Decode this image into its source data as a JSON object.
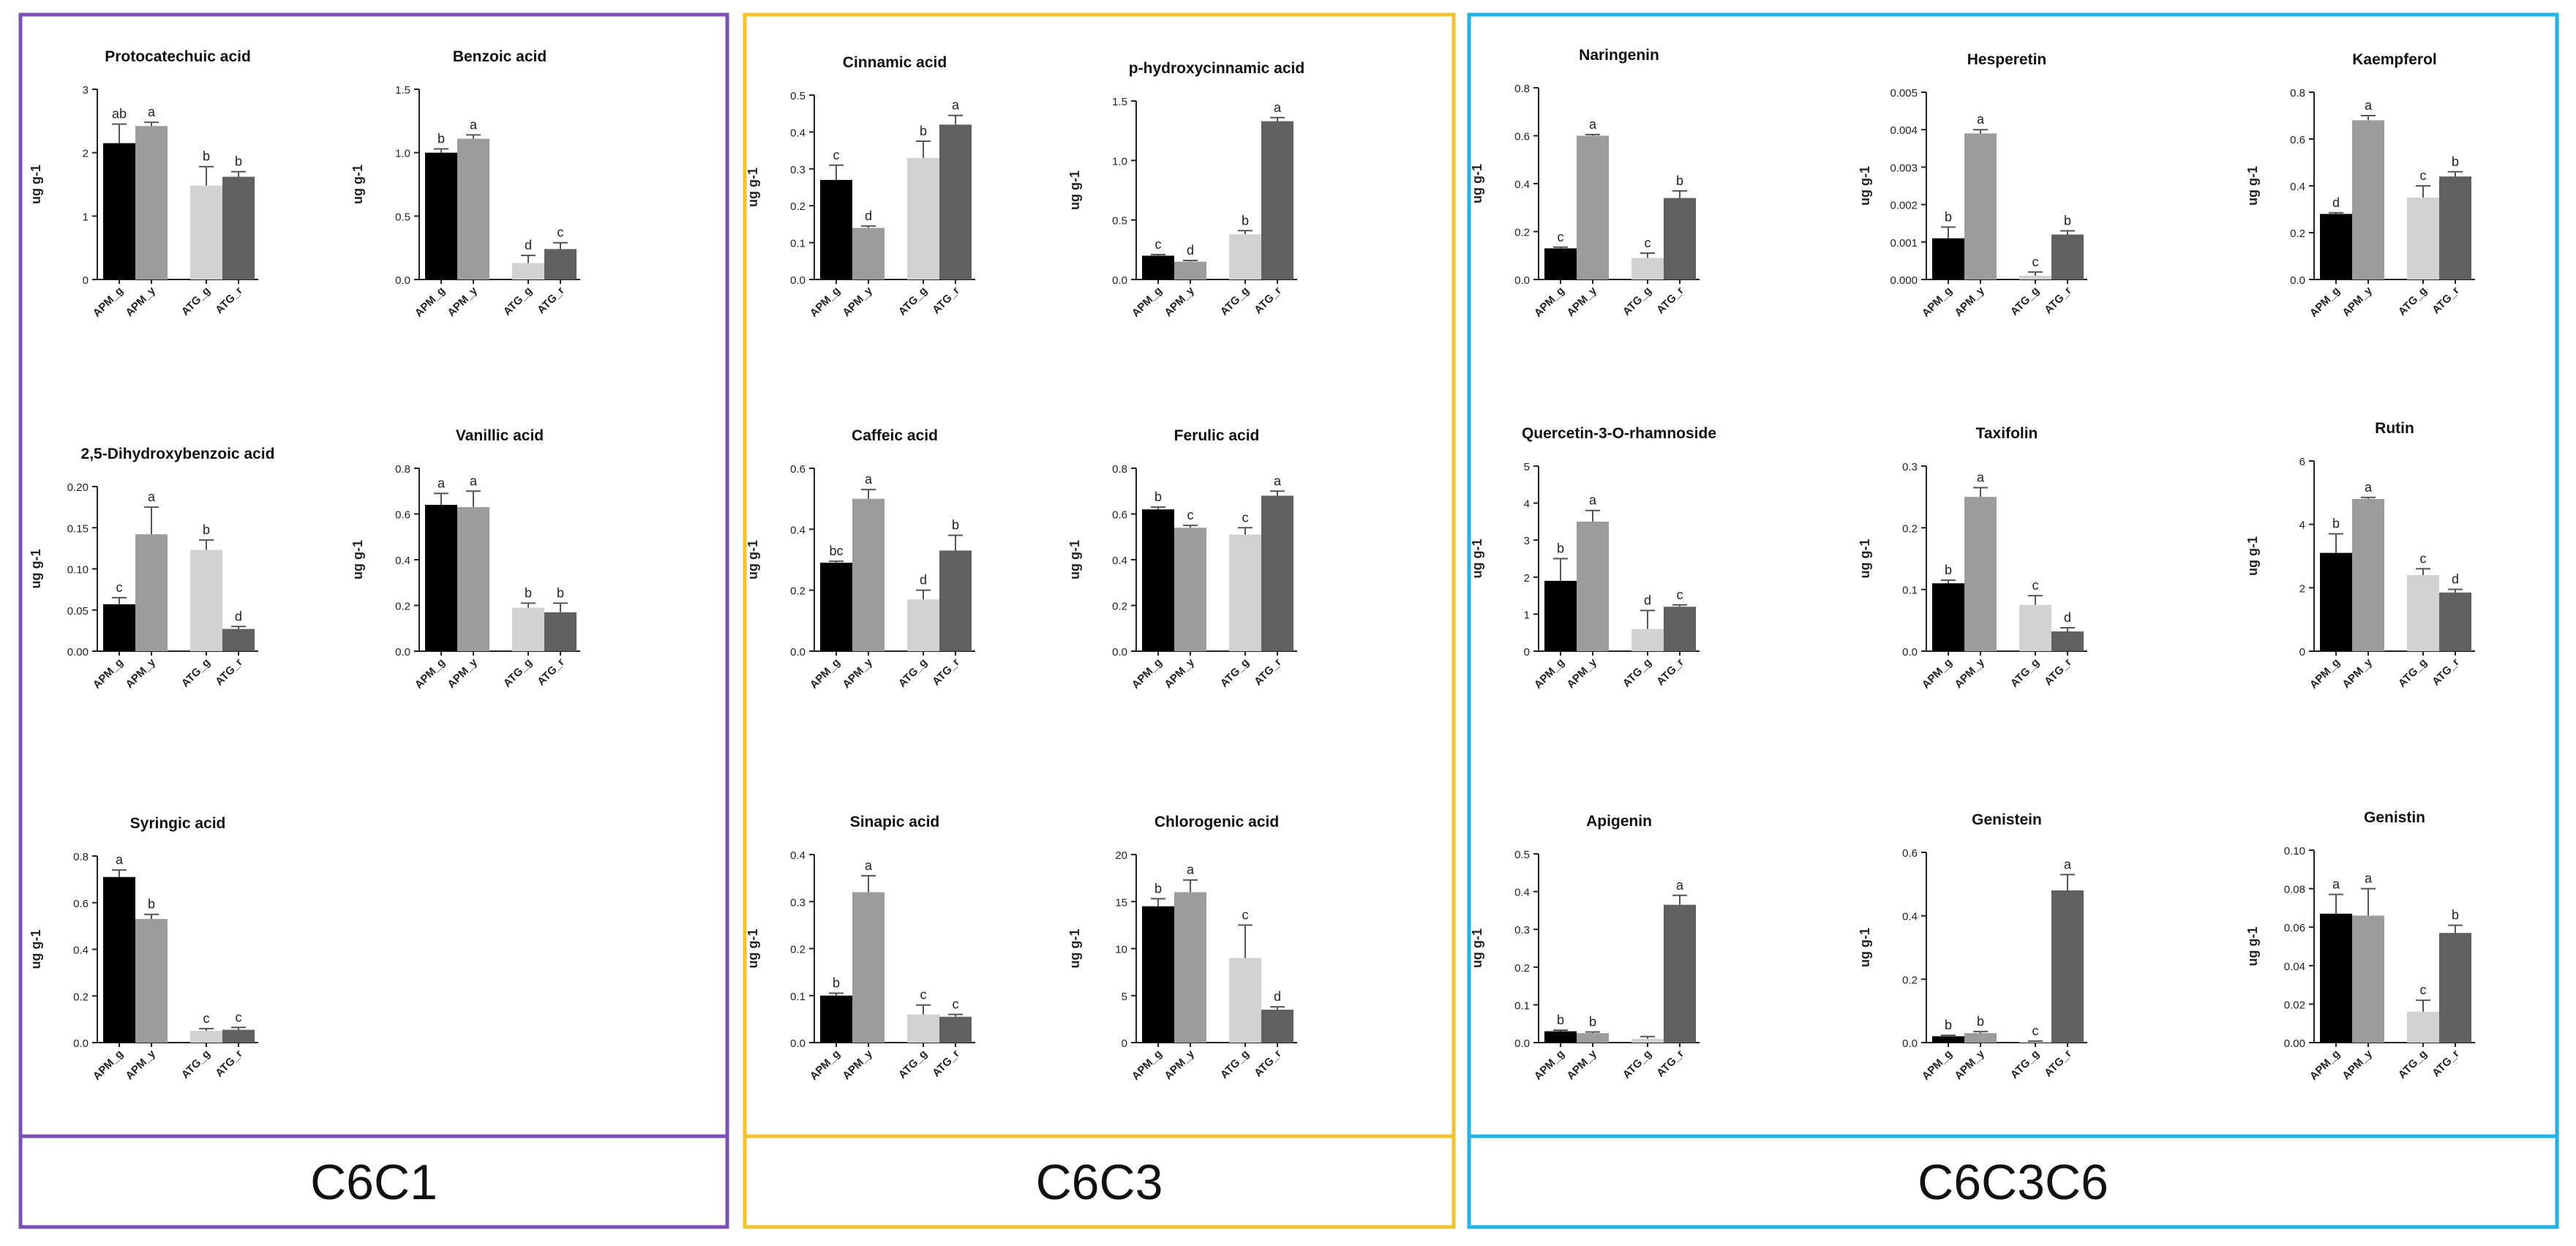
{
  "y_unit_label": "ug g-1",
  "groups": [
    {
      "label": "C6C1",
      "color": "#7B4FB5"
    },
    {
      "label": "C6C3",
      "color": "#F2C230"
    },
    {
      "label": "C6C3C6",
      "color": "#22B3E6"
    }
  ],
  "categories": [
    "APM_g",
    "APM_y",
    "ATG_g",
    "ATG_r"
  ],
  "bar_colors": [
    "#000000",
    "#9C9C9C",
    "#D2D2D2",
    "#606060"
  ],
  "chart_data": [
    {
      "type": "bar",
      "title": "Protocatechuic acid",
      "ylabel": "ug g-1",
      "categories": [
        "APM_g",
        "APM_y",
        "ATG_g",
        "ATG_r"
      ],
      "values": [
        2.15,
        2.42,
        1.48,
        1.62
      ],
      "errors": [
        0.3,
        0.06,
        0.3,
        0.08
      ],
      "letters": [
        "ab",
        "a",
        "b",
        "b"
      ],
      "ylim": [
        0,
        3
      ],
      "yticks": [
        0,
        1,
        2,
        3
      ],
      "yticklabels": [
        "0",
        "1",
        "2",
        "3"
      ]
    },
    {
      "type": "bar",
      "title": "Benzoic acid",
      "ylabel": "ug g-1",
      "categories": [
        "APM_g",
        "APM_y",
        "ATG_g",
        "ATG_r"
      ],
      "values": [
        1.0,
        1.11,
        0.13,
        0.24
      ],
      "errors": [
        0.03,
        0.03,
        0.06,
        0.05
      ],
      "letters": [
        "b",
        "a",
        "d",
        "c"
      ],
      "ylim": [
        0,
        1.5
      ],
      "yticks": [
        0,
        0.5,
        1.0,
        1.5
      ],
      "yticklabels": [
        "0.0",
        "0.5",
        "1.0",
        "1.5"
      ]
    },
    {
      "type": "bar",
      "title": "2,5-Dihydroxybenzoic acid",
      "ylabel": "ug g-1",
      "categories": [
        "APM_g",
        "APM_y",
        "ATG_g",
        "ATG_r"
      ],
      "values": [
        0.057,
        0.142,
        0.123,
        0.027
      ],
      "errors": [
        0.008,
        0.033,
        0.012,
        0.003
      ],
      "letters": [
        "c",
        "a",
        "b",
        "d"
      ],
      "ylim": [
        0,
        0.2
      ],
      "yticks": [
        0,
        0.05,
        0.1,
        0.15,
        0.2
      ],
      "yticklabels": [
        "0.00",
        "0.05",
        "0.10",
        "0.15",
        "0.20"
      ]
    },
    {
      "type": "bar",
      "title": "Vanillic acid",
      "ylabel": "ug g-1",
      "categories": [
        "APM_g",
        "APM_y",
        "ATG_g",
        "ATG_r"
      ],
      "values": [
        0.64,
        0.63,
        0.19,
        0.17
      ],
      "errors": [
        0.05,
        0.07,
        0.02,
        0.04
      ],
      "letters": [
        "a",
        "a",
        "b",
        "b"
      ],
      "ylim": [
        0,
        0.8
      ],
      "yticks": [
        0,
        0.2,
        0.4,
        0.6,
        0.8
      ],
      "yticklabels": [
        "0.0",
        "0.2",
        "0.4",
        "0.6",
        "0.8"
      ]
    },
    {
      "type": "bar",
      "title": "Syringic acid",
      "ylabel": "ug g-1",
      "categories": [
        "APM_g",
        "APM_y",
        "ATG_g",
        "ATG_r"
      ],
      "values": [
        0.71,
        0.53,
        0.05,
        0.055
      ],
      "errors": [
        0.03,
        0.02,
        0.01,
        0.01
      ],
      "letters": [
        "a",
        "b",
        "c",
        "c"
      ],
      "ylim": [
        0,
        0.8
      ],
      "yticks": [
        0,
        0.2,
        0.4,
        0.6,
        0.8
      ],
      "yticklabels": [
        "0.0",
        "0.2",
        "0.4",
        "0.6",
        "0.8"
      ]
    },
    {
      "type": "bar",
      "title": "Cinnamic acid",
      "ylabel": "ug g-1",
      "categories": [
        "APM_g",
        "APM_y",
        "ATG_g",
        "ATG_r"
      ],
      "values": [
        0.27,
        0.14,
        0.33,
        0.42
      ],
      "errors": [
        0.04,
        0.005,
        0.045,
        0.025
      ],
      "letters": [
        "c",
        "d",
        "b",
        "a"
      ],
      "ylim": [
        0,
        0.5
      ],
      "yticks": [
        0,
        0.1,
        0.2,
        0.3,
        0.4,
        0.5
      ],
      "yticklabels": [
        "0.0",
        "0.1",
        "0.2",
        "0.3",
        "0.4",
        "0.5"
      ]
    },
    {
      "type": "bar",
      "title": "p-hydroxycinnamic acid",
      "ylabel": "ug g-1",
      "categories": [
        "APM_g",
        "APM_y",
        "ATG_g",
        "ATG_r"
      ],
      "values": [
        0.2,
        0.15,
        0.38,
        1.33
      ],
      "errors": [
        0.01,
        0.01,
        0.03,
        0.03
      ],
      "letters": [
        "c",
        "d",
        "b",
        "a"
      ],
      "ylim": [
        0,
        1.5
      ],
      "yticks": [
        0,
        0.5,
        1.0,
        1.5
      ],
      "yticklabels": [
        "0.0",
        "0.5",
        "1.0",
        "1.5"
      ]
    },
    {
      "type": "bar",
      "title": "Caffeic acid",
      "ylabel": "ug g-1",
      "categories": [
        "APM_g",
        "APM_y",
        "ATG_g",
        "ATG_r"
      ],
      "values": [
        0.29,
        0.5,
        0.17,
        0.33
      ],
      "errors": [
        0.005,
        0.03,
        0.03,
        0.05
      ],
      "letters": [
        "bc",
        "a",
        "d",
        "b"
      ],
      "ylim": [
        0,
        0.6
      ],
      "yticks": [
        0,
        0.2,
        0.4,
        0.6
      ],
      "yticklabels": [
        "0.0",
        "0.2",
        "0.4",
        "0.6"
      ]
    },
    {
      "type": "bar",
      "title": "Ferulic acid",
      "ylabel": "ug g-1",
      "categories": [
        "APM_g",
        "APM_y",
        "ATG_g",
        "ATG_r"
      ],
      "values": [
        0.62,
        0.54,
        0.51,
        0.68
      ],
      "errors": [
        0.01,
        0.01,
        0.03,
        0.02
      ],
      "letters": [
        "b",
        "c",
        "c",
        "a"
      ],
      "ylim": [
        0,
        0.8
      ],
      "yticks": [
        0,
        0.2,
        0.4,
        0.6,
        0.8
      ],
      "yticklabels": [
        "0.0",
        "0.2",
        "0.4",
        "0.6",
        "0.8"
      ]
    },
    {
      "type": "bar",
      "title": "Sinapic acid",
      "ylabel": "ug g-1",
      "categories": [
        "APM_g",
        "APM_y",
        "ATG_g",
        "ATG_r"
      ],
      "values": [
        0.1,
        0.32,
        0.06,
        0.055
      ],
      "errors": [
        0.005,
        0.035,
        0.02,
        0.005
      ],
      "letters": [
        "b",
        "a",
        "c",
        "c"
      ],
      "ylim": [
        0,
        0.4
      ],
      "yticks": [
        0,
        0.1,
        0.2,
        0.3,
        0.4
      ],
      "yticklabels": [
        "0.0",
        "0.1",
        "0.2",
        "0.3",
        "0.4"
      ]
    },
    {
      "type": "bar",
      "title": "Chlorogenic acid",
      "ylabel": "ug g-1",
      "categories": [
        "APM_g",
        "APM_y",
        "ATG_g",
        "ATG_r"
      ],
      "values": [
        14.5,
        16.0,
        9.0,
        3.5
      ],
      "errors": [
        0.8,
        1.3,
        3.5,
        0.3
      ],
      "letters": [
        "b",
        "a",
        "c",
        "d"
      ],
      "ylim": [
        0,
        20
      ],
      "yticks": [
        0,
        5,
        10,
        15,
        20
      ],
      "yticklabels": [
        "0",
        "5",
        "10",
        "15",
        "20"
      ]
    },
    {
      "type": "bar",
      "title": "Naringenin",
      "ylabel": "ug g-1",
      "categories": [
        "APM_g",
        "APM_y",
        "ATG_g",
        "ATG_r"
      ],
      "values": [
        0.13,
        0.6,
        0.09,
        0.34
      ],
      "errors": [
        0.005,
        0.005,
        0.02,
        0.03
      ],
      "letters": [
        "c",
        "a",
        "c",
        "b"
      ],
      "ylim": [
        0,
        0.8
      ],
      "yticks": [
        0,
        0.2,
        0.4,
        0.6,
        0.8
      ],
      "yticklabels": [
        "0.0",
        "0.2",
        "0.4",
        "0.6",
        "0.8"
      ]
    },
    {
      "type": "bar",
      "title": "Hesperetin",
      "ylabel": "ug g-1",
      "categories": [
        "APM_g",
        "APM_y",
        "ATG_g",
        "ATG_r"
      ],
      "values": [
        0.0011,
        0.0039,
        0.0001,
        0.0012
      ],
      "errors": [
        0.0003,
        0.0001,
        0.0001,
        0.0001
      ],
      "letters": [
        "b",
        "a",
        "c",
        "b"
      ],
      "ylim": [
        0,
        0.005
      ],
      "yticks": [
        0,
        0.001,
        0.002,
        0.003,
        0.004,
        0.005
      ],
      "yticklabels": [
        "0.000",
        "0.001",
        "0.002",
        "0.003",
        "0.004",
        "0.005"
      ]
    },
    {
      "type": "bar",
      "title": "Kaempferol",
      "ylabel": "ug g-1",
      "categories": [
        "APM_g",
        "APM_y",
        "ATG_g",
        "ATG_r"
      ],
      "values": [
        0.28,
        0.68,
        0.35,
        0.44
      ],
      "errors": [
        0.005,
        0.02,
        0.05,
        0.02
      ],
      "letters": [
        "d",
        "a",
        "c",
        "b"
      ],
      "ylim": [
        0,
        0.8
      ],
      "yticks": [
        0,
        0.2,
        0.4,
        0.6,
        0.8
      ],
      "yticklabels": [
        "0.0",
        "0.2",
        "0.4",
        "0.6",
        "0.8"
      ]
    },
    {
      "type": "bar",
      "title": "Quercetin-3-O-rhamnoside",
      "ylabel": "ug g-1",
      "categories": [
        "APM_g",
        "APM_y",
        "ATG_g",
        "ATG_r"
      ],
      "values": [
        1.9,
        3.5,
        0.6,
        1.2
      ],
      "errors": [
        0.6,
        0.3,
        0.5,
        0.05
      ],
      "letters": [
        "b",
        "a",
        "d",
        "c"
      ],
      "ylim": [
        0,
        5
      ],
      "yticks": [
        0,
        1,
        2,
        3,
        4,
        5
      ],
      "yticklabels": [
        "0",
        "1",
        "2",
        "3",
        "4",
        "5"
      ]
    },
    {
      "type": "bar",
      "title": "Taxifolin",
      "ylabel": "ug g-1",
      "categories": [
        "APM_g",
        "APM_y",
        "ATG_g",
        "ATG_r"
      ],
      "values": [
        0.11,
        0.25,
        0.075,
        0.032
      ],
      "errors": [
        0.005,
        0.015,
        0.015,
        0.006
      ],
      "letters": [
        "b",
        "a",
        "c",
        "d"
      ],
      "ylim": [
        0,
        0.3
      ],
      "yticks": [
        0,
        0.1,
        0.2,
        0.3
      ],
      "yticklabels": [
        "0.0",
        "0.1",
        "0.2",
        "0.3"
      ]
    },
    {
      "type": "bar",
      "title": "Rutin",
      "ylabel": "ug g-1",
      "categories": [
        "APM_g",
        "APM_y",
        "ATG_g",
        "ATG_r"
      ],
      "values": [
        3.1,
        4.8,
        2.4,
        1.85
      ],
      "errors": [
        0.6,
        0.05,
        0.2,
        0.1
      ],
      "letters": [
        "b",
        "a",
        "c",
        "d"
      ],
      "ylim": [
        0,
        6
      ],
      "yticks": [
        0,
        2,
        4,
        6
      ],
      "yticklabels": [
        "0",
        "2",
        "4",
        "6"
      ]
    },
    {
      "type": "bar",
      "title": "Apigenin",
      "ylabel": "ug g-1",
      "categories": [
        "APM_g",
        "APM_y",
        "ATG_g",
        "ATG_r"
      ],
      "values": [
        0.03,
        0.025,
        0.01,
        0.365
      ],
      "errors": [
        0.003,
        0.003,
        0.006,
        0.025
      ],
      "letters": [
        "b",
        "b",
        "",
        "a"
      ],
      "ylim": [
        0,
        0.5
      ],
      "yticks": [
        0,
        0.1,
        0.2,
        0.3,
        0.4,
        0.5
      ],
      "yticklabels": [
        "0.0",
        "0.1",
        "0.2",
        "0.3",
        "0.4",
        "0.5"
      ]
    },
    {
      "type": "bar",
      "title": "Genistein",
      "ylabel": "ug g-1",
      "categories": [
        "APM_g",
        "APM_y",
        "ATG_g",
        "ATG_r"
      ],
      "values": [
        0.02,
        0.03,
        0.003,
        0.48
      ],
      "errors": [
        0.003,
        0.005,
        0.002,
        0.05
      ],
      "letters": [
        "b",
        "b",
        "c",
        "a"
      ],
      "ylim": [
        0,
        0.6
      ],
      "yticks": [
        0,
        0.2,
        0.4,
        0.6
      ],
      "yticklabels": [
        "0.0",
        "0.2",
        "0.4",
        "0.6"
      ]
    },
    {
      "type": "bar",
      "title": "Genistin",
      "ylabel": "ug g-1",
      "categories": [
        "APM_g",
        "APM_y",
        "ATG_g",
        "ATG_r"
      ],
      "values": [
        0.067,
        0.066,
        0.016,
        0.057
      ],
      "errors": [
        0.01,
        0.014,
        0.006,
        0.004
      ],
      "letters": [
        "a",
        "a",
        "c",
        "b"
      ],
      "ylim": [
        0,
        0.1
      ],
      "yticks": [
        0,
        0.02,
        0.04,
        0.06,
        0.08,
        0.1
      ],
      "yticklabels": [
        "0.00",
        "0.02",
        "0.04",
        "0.06",
        "0.08",
        "0.10"
      ]
    }
  ]
}
